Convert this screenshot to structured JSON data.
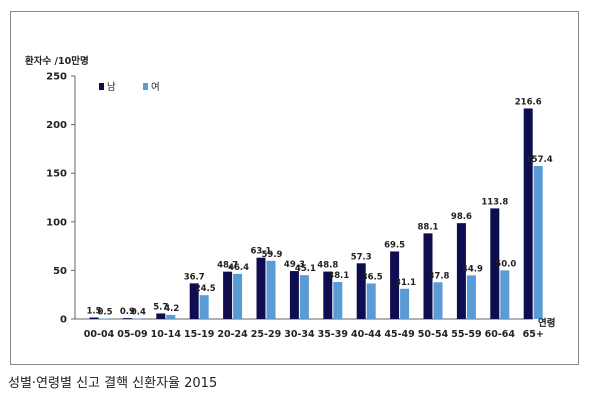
{
  "chart_data": {
    "type": "bar",
    "ylabel": "환자수 /10만명",
    "xlabel": "연령",
    "ylim": [
      0,
      250
    ],
    "yticks": [
      0,
      50,
      100,
      150,
      200,
      250
    ],
    "grid": false,
    "legend_position": "top-left",
    "categories": [
      "00-04",
      "05-09",
      "10-14",
      "15-19",
      "20-24",
      "25-29",
      "30-34",
      "35-39",
      "40-44",
      "45-49",
      "50-54",
      "55-59",
      "60-64",
      "65+"
    ],
    "series": [
      {
        "name": "남",
        "color": "#0d0d4f",
        "values": [
          1.5,
          0.9,
          5.7,
          36.7,
          48.7,
          63.1,
          49.3,
          48.8,
          57.3,
          69.5,
          88.1,
          98.6,
          113.8,
          216.6
        ]
      },
      {
        "name": "여",
        "color": "#5b9bd5",
        "values": [
          0.5,
          0.4,
          4.2,
          24.5,
          46.4,
          59.9,
          45.1,
          38.1,
          36.5,
          31.1,
          37.8,
          44.9,
          50.0,
          157.4
        ]
      }
    ]
  },
  "caption": "성별·연령별 신고 결핵 신환자율 2015"
}
